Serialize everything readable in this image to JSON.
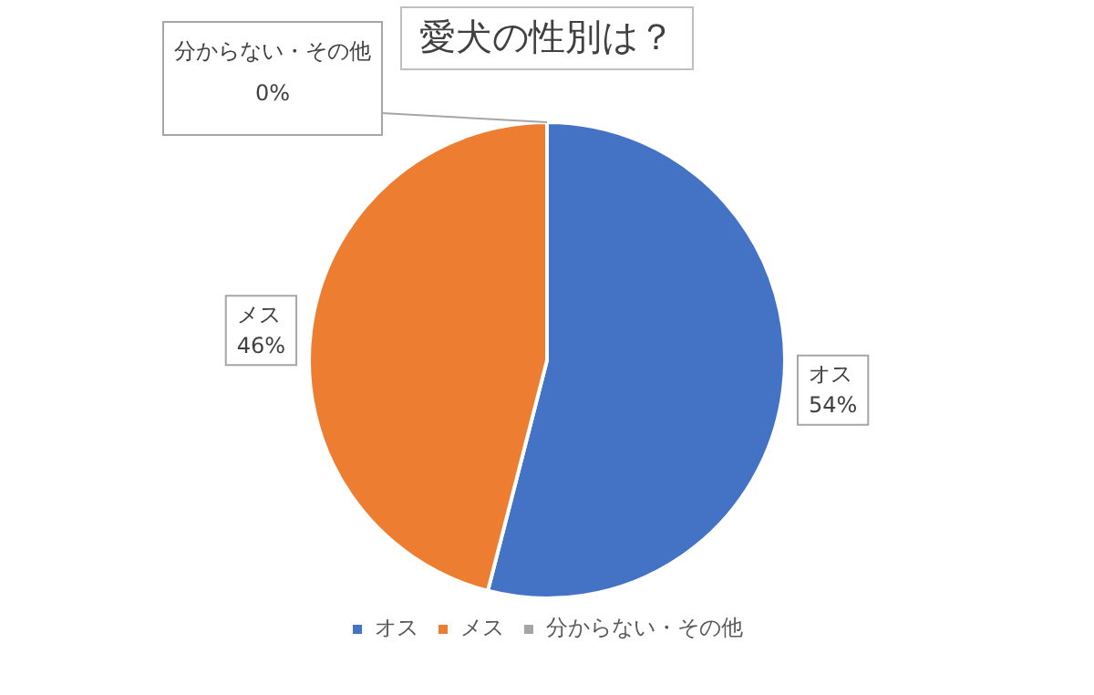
{
  "chart_data": {
    "type": "pie",
    "title": "愛犬の性別は？",
    "categories": [
      "オス",
      "メス",
      "分からない・その他"
    ],
    "values": [
      54,
      46,
      0
    ],
    "value_labels": [
      "54%",
      "46%",
      "0%"
    ],
    "colors": [
      "#4472c4",
      "#ed7d31",
      "#a5a5a5"
    ],
    "legend": "bottom"
  }
}
